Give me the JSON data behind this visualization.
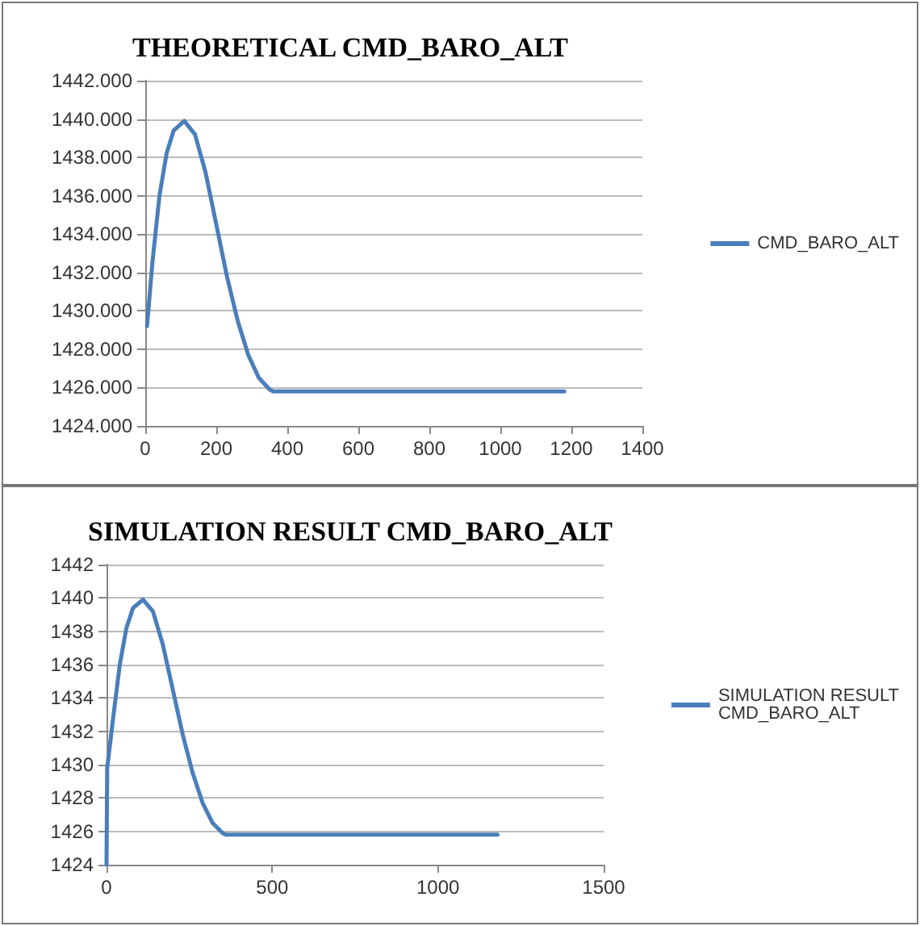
{
  "chart_data": [
    {
      "type": "line",
      "title": "THEORETICAL CMD_BARO_ALT",
      "legend": "right",
      "grid": "y",
      "xlim": [
        0,
        1400
      ],
      "xticks": [
        0,
        200,
        400,
        600,
        800,
        1000,
        1200,
        1400
      ],
      "ylim": [
        1424,
        1442
      ],
      "yticks": [
        {
          "value": 1424,
          "label": "1424.000"
        },
        {
          "value": 1426,
          "label": "1426.000"
        },
        {
          "value": 1428,
          "label": "1428.000"
        },
        {
          "value": 1430,
          "label": "1430.000"
        },
        {
          "value": 1432,
          "label": "1432.000"
        },
        {
          "value": 1434,
          "label": "1434.000"
        },
        {
          "value": 1436,
          "label": "1436.000"
        },
        {
          "value": 1438,
          "label": "1438.000"
        },
        {
          "value": 1440,
          "label": "1440.000"
        },
        {
          "value": 1442,
          "label": "1442.000"
        }
      ],
      "series": [
        {
          "name": "CMD_BARO_ALT",
          "color": "#4a7ebb",
          "x": [
            5,
            20,
            40,
            60,
            80,
            110,
            140,
            170,
            200,
            230,
            260,
            290,
            320,
            350,
            360,
            1180
          ],
          "values": [
            1429.2,
            1432.5,
            1436,
            1438.2,
            1439.4,
            1439.9,
            1439.2,
            1437.2,
            1434.5,
            1431.8,
            1429.5,
            1427.7,
            1426.5,
            1425.9,
            1425.8,
            1425.8
          ]
        }
      ]
    },
    {
      "type": "line",
      "title": "SIMULATION RESULT CMD_BARO_ALT",
      "legend": "right",
      "grid": "y",
      "xlim": [
        0,
        1500
      ],
      "xticks": [
        0,
        500,
        1000,
        1500
      ],
      "ylim": [
        1424,
        1442
      ],
      "yticks": [
        1424,
        1426,
        1428,
        1430,
        1432,
        1434,
        1436,
        1438,
        1440,
        1442
      ],
      "series": [
        {
          "name": "SIMULATION RESULT CMD_BARO_ALT",
          "color": "#4a7ebb",
          "x": [
            0,
            2,
            20,
            40,
            60,
            80,
            110,
            140,
            170,
            200,
            230,
            260,
            290,
            320,
            350,
            360,
            1180
          ],
          "values": [
            1424,
            1429.8,
            1432.8,
            1436,
            1438.2,
            1439.4,
            1439.9,
            1439.2,
            1437.2,
            1434.5,
            1431.8,
            1429.5,
            1427.7,
            1426.5,
            1425.9,
            1425.8,
            1425.8
          ]
        }
      ]
    }
  ]
}
